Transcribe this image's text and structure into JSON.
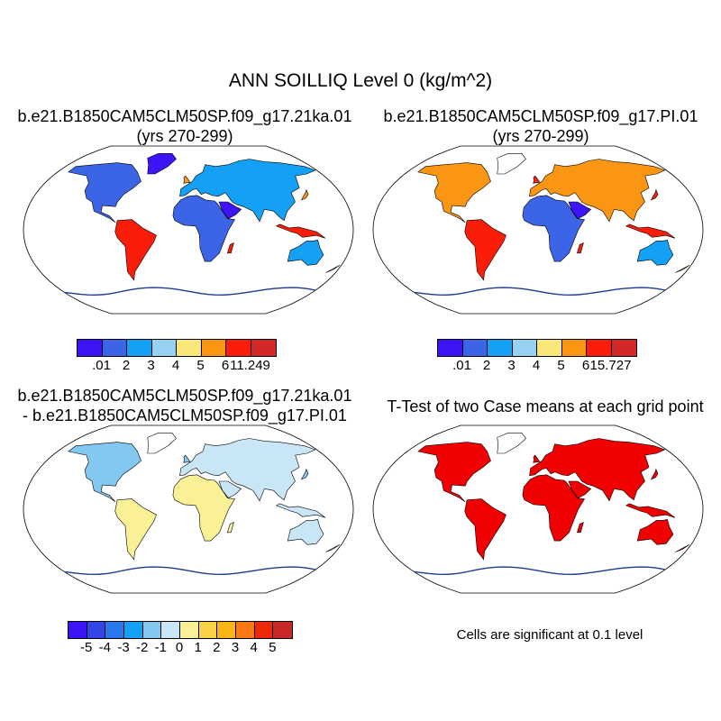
{
  "title": "ANN SOILLIQ Level 0 (kg/m^2)",
  "panels": [
    {
      "id": "case1",
      "title_line1": "b.e21.B1850CAM5CLM50SP.f09_g17.21ka.01",
      "title_line2": "(yrs 270-299)",
      "colorbar": {
        "colors": [
          "#3c14f5",
          "#3c64e6",
          "#14a0f5",
          "#96d2f0",
          "#fae678",
          "#fa9614",
          "#fa1e0a",
          "#d22828"
        ],
        "labels": [
          ".01",
          "2",
          "3",
          "4",
          "5",
          "6",
          "11.249"
        ]
      }
    },
    {
      "id": "case2",
      "title_line1": "b.e21.B1850CAM5CLM50SP.f09_g17.PI.01",
      "title_line2": "(yrs 270-299)",
      "colorbar": {
        "colors": [
          "#3c14f5",
          "#3c64e6",
          "#14a0f5",
          "#96d2f0",
          "#fae678",
          "#fa9614",
          "#fa1e0a",
          "#d22828"
        ],
        "labels": [
          ".01",
          "2",
          "3",
          "4",
          "5",
          "6",
          "15.727"
        ]
      }
    },
    {
      "id": "difference",
      "title_line1": "b.e21.B1850CAM5CLM50SP.f09_g17.21ka.01",
      "title_line2": "- b.e21.B1850CAM5CLM50SP.f09_g17.PI.01",
      "colorbar": {
        "colors": [
          "#3c14f5",
          "#3246e6",
          "#2878f0",
          "#14a0f5",
          "#82c8f0",
          "#c8e6f5",
          "#faf096",
          "#fad246",
          "#fab414",
          "#fa7814",
          "#f0280a",
          "#c82828"
        ],
        "labels": [
          "-5",
          "-4",
          "-3",
          "-2",
          "-1",
          "0",
          "1",
          "2",
          "3",
          "4",
          "5"
        ]
      }
    },
    {
      "id": "ttest",
      "title_line1": "T-Test of two Case means at each grid point",
      "note": "Cells are significant at 0.1 level"
    }
  ]
}
